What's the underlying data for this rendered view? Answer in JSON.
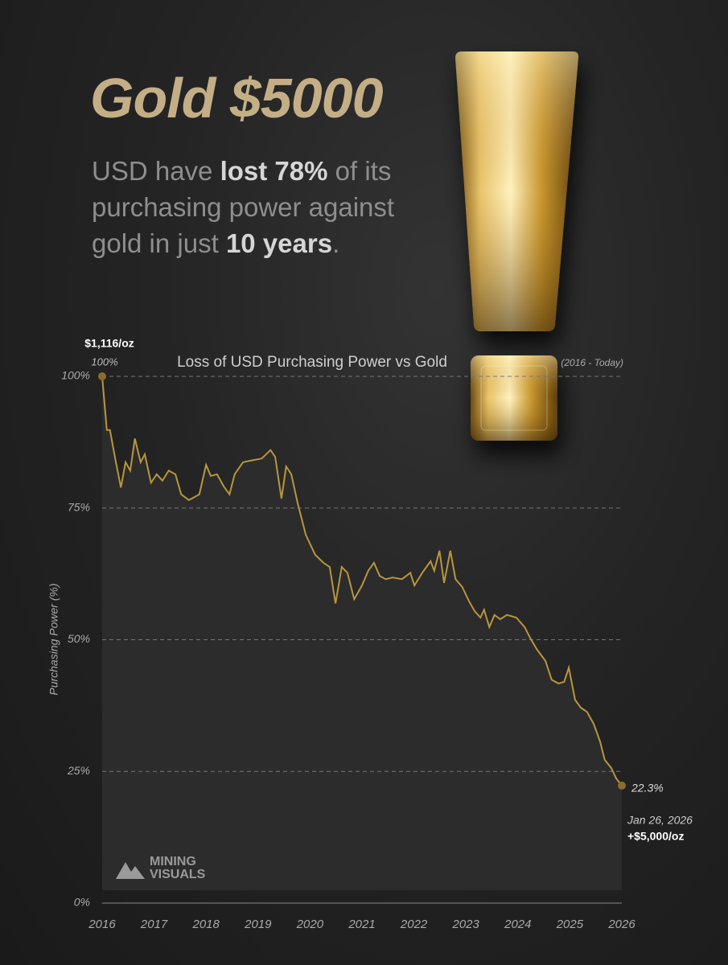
{
  "header": {
    "title": "Gold $5000",
    "subtitle_segments": [
      {
        "text": "USD have ",
        "bold": false
      },
      {
        "text": "lost 78%",
        "bold": true
      },
      {
        "text": " of its purchasing power against gold in just ",
        "bold": false
      },
      {
        "text": "10 years",
        "bold": true
      },
      {
        "text": ".",
        "bold": false
      }
    ]
  },
  "logo": {
    "line1": "MINING",
    "line2": "VISUALS"
  },
  "chart_data": {
    "type": "line",
    "title": "Loss of USD Purchasing Power vs Gold",
    "subtitle": "(2016 - Today)",
    "y_label": "Purchasing Power (%)",
    "color": "#b8963e",
    "area_color": "#2c2c2c",
    "x": [
      2016.0,
      2016.09,
      2016.15,
      2016.25,
      2016.36,
      2016.45,
      2016.54,
      2016.63,
      2016.74,
      2016.82,
      2016.94,
      2017.05,
      2017.16,
      2017.28,
      2017.41,
      2017.52,
      2017.67,
      2017.87,
      2018.0,
      2018.09,
      2018.21,
      2018.34,
      2018.45,
      2018.55,
      2018.71,
      2018.91,
      2019.07,
      2019.24,
      2019.33,
      2019.45,
      2019.54,
      2019.64,
      2019.76,
      2019.92,
      2020.1,
      2020.26,
      2020.38,
      2020.49,
      2020.61,
      2020.72,
      2020.85,
      2021.0,
      2021.12,
      2021.23,
      2021.34,
      2021.46,
      2021.59,
      2021.77,
      2021.93,
      2022.01,
      2022.16,
      2022.32,
      2022.39,
      2022.49,
      2022.58,
      2022.7,
      2022.8,
      2022.93,
      2023.06,
      2023.17,
      2023.28,
      2023.35,
      2023.45,
      2023.55,
      2023.66,
      2023.79,
      2023.97,
      2024.13,
      2024.25,
      2024.37,
      2024.53,
      2024.65,
      2024.78,
      2024.89,
      2024.98,
      2025.1,
      2025.21,
      2025.33,
      2025.46,
      2025.58,
      2025.67,
      2025.8,
      2025.89,
      2026.0
    ],
    "values": [
      100,
      89.8,
      89.8,
      84.4,
      78.9,
      83.7,
      82.1,
      88.2,
      83.7,
      85.2,
      79.8,
      81.4,
      80.2,
      82.1,
      81.4,
      77.6,
      76.5,
      77.6,
      83.2,
      81.1,
      81.4,
      79.1,
      77.6,
      81.4,
      83.7,
      84.1,
      84.4,
      86.0,
      84.7,
      76.8,
      82.9,
      81.4,
      76.0,
      69.9,
      66.1,
      64.6,
      63.8,
      56.9,
      63.8,
      62.7,
      57.7,
      60.3,
      63.1,
      64.6,
      62.1,
      61.5,
      61.8,
      61.5,
      62.7,
      60.3,
      62.7,
      64.9,
      63.1,
      66.9,
      60.8,
      66.9,
      61.5,
      60.0,
      57.3,
      55.4,
      54.2,
      55.7,
      52.4,
      54.7,
      53.9,
      54.7,
      54.2,
      52.4,
      50.1,
      48.1,
      46.0,
      42.4,
      41.7,
      42.0,
      44.7,
      38.6,
      37.1,
      36.3,
      34.0,
      30.7,
      27.2,
      25.6,
      23.7,
      22.3
    ],
    "start_annotation": {
      "price": "$1,116/oz",
      "value_label": "100%"
    },
    "end_annotation": {
      "value_label": "22.3%",
      "date": "Jan 26, 2026",
      "price": "+$5,000/oz"
    },
    "xlim": [
      2016,
      2026
    ],
    "xticks": [
      2016,
      2017,
      2018,
      2019,
      2020,
      2021,
      2022,
      2023,
      2024,
      2025,
      2026
    ],
    "ylim": [
      0,
      100
    ],
    "yticks": [
      {
        "value": 0,
        "label": "0%"
      },
      {
        "value": 25,
        "label": "25%"
      },
      {
        "value": 50,
        "label": "50%"
      },
      {
        "value": 75,
        "label": "75%"
      },
      {
        "value": 100,
        "label": "100%"
      }
    ],
    "grid": true
  }
}
